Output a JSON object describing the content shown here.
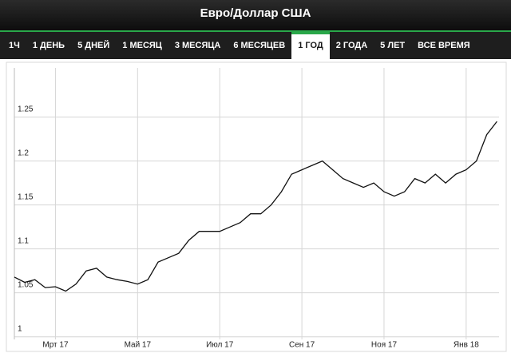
{
  "header": {
    "title": "Евро/Доллар США"
  },
  "tabs": [
    "1Ч",
    "1 ДЕНЬ",
    "5 ДНЕЙ",
    "1 МЕСЯЦ",
    "3 МЕСЯЦА",
    "6 МЕСЯЦЕВ",
    "1 ГОД",
    "2 ГОДА",
    "5 ЛЕТ",
    "ВСЕ ВРЕМЯ"
  ],
  "active_tab": "1 ГОД",
  "chart_data": {
    "type": "line",
    "color": "#111111",
    "grid": true,
    "x": [
      1.0,
      1.25,
      1.5,
      1.75,
      2.0,
      2.25,
      2.5,
      2.75,
      3.0,
      3.25,
      3.5,
      3.75,
      4.0,
      4.25,
      4.5,
      4.75,
      5.0,
      5.25,
      5.5,
      5.75,
      6.0,
      6.25,
      6.5,
      6.75,
      7.0,
      7.25,
      7.5,
      7.75,
      8.0,
      8.25,
      8.5,
      8.75,
      9.0,
      9.25,
      9.5,
      9.75,
      10.0,
      10.25,
      10.5,
      10.75,
      11.0,
      11.25,
      11.5,
      11.75,
      12.0,
      12.25,
      12.5,
      12.75
    ],
    "values": [
      1.068,
      1.062,
      1.065,
      1.056,
      1.057,
      1.052,
      1.06,
      1.075,
      1.078,
      1.068,
      1.065,
      1.063,
      1.06,
      1.065,
      1.085,
      1.09,
      1.095,
      1.11,
      1.12,
      1.12,
      1.12,
      1.125,
      1.13,
      1.14,
      1.14,
      1.15,
      1.165,
      1.185,
      1.19,
      1.195,
      1.2,
      1.19,
      1.18,
      1.175,
      1.17,
      1.175,
      1.165,
      1.16,
      1.165,
      1.18,
      1.175,
      1.185,
      1.175,
      1.185,
      1.19,
      1.2,
      1.23,
      1.245
    ],
    "xlim": [
      1.0,
      12.8
    ],
    "xticks": [
      {
        "value": 2,
        "label": "Мрт 17"
      },
      {
        "value": 4,
        "label": "Май 17"
      },
      {
        "value": 6,
        "label": "Июл 17"
      },
      {
        "value": 8,
        "label": "Сен 17"
      },
      {
        "value": 10,
        "label": "Ноя 17"
      },
      {
        "value": 12,
        "label": "Янв 18"
      }
    ],
    "ylim": [
      0.997,
      1.306
    ],
    "yticks": [
      1,
      1.05,
      1.1,
      1.15,
      1.2,
      1.25
    ]
  }
}
